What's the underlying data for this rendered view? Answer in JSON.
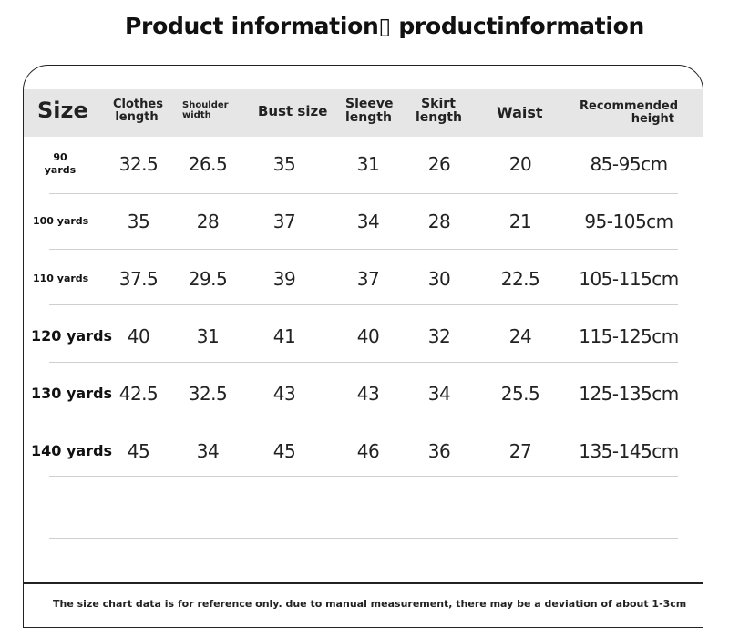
{
  "title": "Product information▯ productinformation",
  "table": {
    "headers": {
      "size": "Size",
      "clothes_length": [
        "Clothes",
        "length"
      ],
      "shoulder_width": [
        "Shoulder",
        "width"
      ],
      "bust_size": "Bust size",
      "sleeve_length": [
        "Sleeve",
        "length"
      ],
      "skirt_length": [
        "Skirt",
        "length"
      ],
      "waist": "Waist",
      "recommended_height": [
        "Recommended",
        "height"
      ]
    },
    "rows": [
      {
        "size": [
          "90",
          "yards"
        ],
        "clothes": "32.5",
        "shoulder": "26.5",
        "bust": "35",
        "sleeve": "31",
        "skirt": "26",
        "waist": "20",
        "height": "85-95cm"
      },
      {
        "size": "100 yards",
        "clothes": "35",
        "shoulder": "28",
        "bust": "37",
        "sleeve": "34",
        "skirt": "28",
        "waist": "21",
        "height": "95-105cm"
      },
      {
        "size": "110 yards",
        "clothes": "37.5",
        "shoulder": "29.5",
        "bust": "39",
        "sleeve": "37",
        "skirt": "30",
        "waist": "22.5",
        "height": "105-115cm"
      },
      {
        "size": "120 yards",
        "clothes": "40",
        "shoulder": "31",
        "bust": "41",
        "sleeve": "40",
        "skirt": "32",
        "waist": "24",
        "height": "115-125cm"
      },
      {
        "size": "130 yards",
        "clothes": "42.5",
        "shoulder": "32.5",
        "bust": "43",
        "sleeve": "43",
        "skirt": "34",
        "waist": "25.5",
        "height": "125-135cm"
      },
      {
        "size": "140 yards",
        "clothes": "45",
        "shoulder": "34",
        "bust": "45",
        "sleeve": "46",
        "skirt": "36",
        "waist": "27",
        "height": "135-145cm"
      }
    ]
  },
  "note": "The size chart data is for reference only. due to manual measurement, there may be a deviation of about 1-3cm"
}
